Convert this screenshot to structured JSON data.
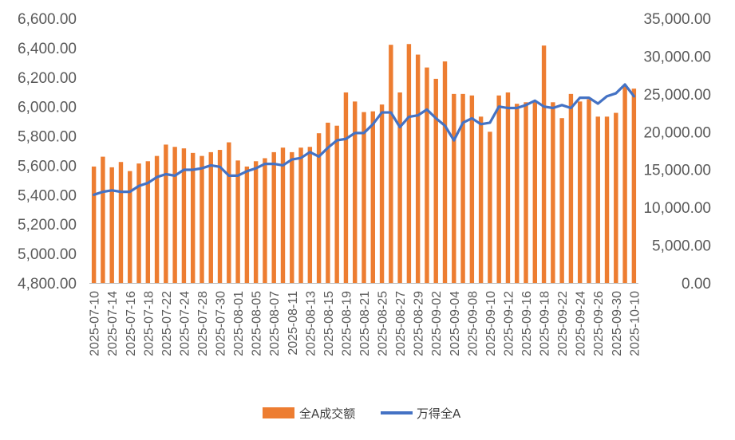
{
  "chart_data": {
    "type": "bar+line",
    "x": [
      "2025-07-10",
      "2025-07-11",
      "2025-07-14",
      "2025-07-15",
      "2025-07-16",
      "2025-07-17",
      "2025-07-18",
      "2025-07-21",
      "2025-07-22",
      "2025-07-23",
      "2025-07-24",
      "2025-07-25",
      "2025-07-28",
      "2025-07-29",
      "2025-07-30",
      "2025-07-31",
      "2025-08-01",
      "2025-08-04",
      "2025-08-05",
      "2025-08-06",
      "2025-08-07",
      "2025-08-08",
      "2025-08-11",
      "2025-08-12",
      "2025-08-13",
      "2025-08-14",
      "2025-08-15",
      "2025-08-18",
      "2025-08-19",
      "2025-08-20",
      "2025-08-21",
      "2025-08-22",
      "2025-08-25",
      "2025-08-26",
      "2025-08-27",
      "2025-08-28",
      "2025-08-29",
      "2025-09-01",
      "2025-09-02",
      "2025-09-03",
      "2025-09-04",
      "2025-09-05",
      "2025-09-08",
      "2025-09-09",
      "2025-09-10",
      "2025-09-11",
      "2025-09-12",
      "2025-09-15",
      "2025-09-16",
      "2025-09-17",
      "2025-09-18",
      "2025-09-19",
      "2025-09-22",
      "2025-09-23",
      "2025-09-24",
      "2025-09-25",
      "2025-09-26",
      "2025-09-29",
      "2025-09-30",
      "2025-10-09",
      "2025-10-10"
    ],
    "tick_labels": [
      "2025-07-10",
      "2025-07-14",
      "2025-07-16",
      "2025-07-18",
      "2025-07-22",
      "2025-07-24",
      "2025-07-28",
      "2025-07-30",
      "2025-08-01",
      "2025-08-05",
      "2025-08-07",
      "2025-08-11",
      "2025-08-13",
      "2025-08-15",
      "2025-08-19",
      "2025-08-21",
      "2025-08-25",
      "2025-08-27",
      "2025-08-29",
      "2025-09-02",
      "2025-09-04",
      "2025-09-08",
      "2025-09-10",
      "2025-09-12",
      "2025-09-16",
      "2025-09-18",
      "2025-09-22",
      "2025-09-24",
      "2025-09-26",
      "2025-09-30",
      "2025-10-10"
    ],
    "series": [
      {
        "name": "全A成交额",
        "type": "bar",
        "axis": "right",
        "color": "#ED7D31",
        "values": [
          15400,
          16700,
          15300,
          16000,
          14800,
          15800,
          16100,
          16800,
          18300,
          18000,
          17800,
          17200,
          16800,
          17300,
          17600,
          18600,
          16200,
          15400,
          16100,
          16500,
          17300,
          17900,
          17300,
          17900,
          18000,
          19800,
          21200,
          20800,
          25200,
          24000,
          22600,
          22700,
          23600,
          31500,
          25200,
          31600,
          30200,
          28500,
          27000,
          29300,
          25000,
          25000,
          24800,
          22000,
          20000,
          24800,
          25200,
          23700,
          23900,
          24000,
          31400,
          23900,
          21800,
          25000,
          24000,
          24300,
          22000,
          22000,
          22500,
          26000,
          25700
        ]
      },
      {
        "name": "万得全A",
        "type": "line",
        "axis": "left",
        "color": "#4472C4",
        "values": [
          5400,
          5420,
          5430,
          5420,
          5420,
          5460,
          5480,
          5520,
          5540,
          5530,
          5570,
          5570,
          5580,
          5600,
          5590,
          5530,
          5530,
          5560,
          5580,
          5610,
          5610,
          5600,
          5640,
          5650,
          5690,
          5660,
          5720,
          5770,
          5780,
          5820,
          5820,
          5880,
          5960,
          5960,
          5860,
          5930,
          5940,
          5980,
          5920,
          5870,
          5770,
          5890,
          5920,
          5880,
          5890,
          6000,
          5990,
          5990,
          6010,
          6040,
          6000,
          5990,
          6010,
          5990,
          6060,
          6060,
          6020,
          6070,
          6090,
          6150,
          6070
        ]
      }
    ],
    "y_left": {
      "min": 4800,
      "max": 6600,
      "step": 200,
      "tick_labels": [
        "4,800.00",
        "5,000.00",
        "5,200.00",
        "5,400.00",
        "5,600.00",
        "5,800.00",
        "6,000.00",
        "6,200.00",
        "6,400.00",
        "6,600.00"
      ]
    },
    "y_right": {
      "min": 0,
      "max": 35000,
      "step": 5000,
      "tick_labels": [
        "0.00",
        "5,000.00",
        "10,000.00",
        "15,000.00",
        "20,000.00",
        "25,000.00",
        "30,000.00",
        "35,000.00"
      ]
    },
    "grid": false,
    "legend": {
      "position": "bottom",
      "entries": [
        "全A成交额",
        "万得全A"
      ]
    }
  }
}
